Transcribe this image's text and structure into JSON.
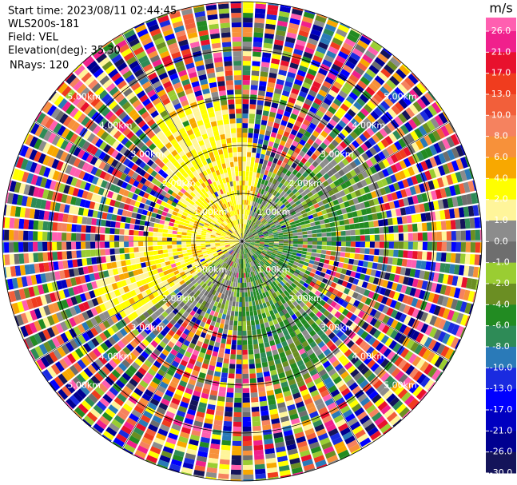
{
  "chart_data": {
    "type": "ppi",
    "header": [
      "Start time: 2023/08/11 02:44:45",
      "WLS200s-181",
      "Field: VEL",
      "Elevation(deg): 35.30",
      "NRays: 120"
    ],
    "range_labels": [
      "1.00km",
      "2.00km",
      "3.00km",
      "4.00km",
      "5.00km"
    ],
    "colorbar": {
      "label": "m/s",
      "ticks": [
        {
          "value": 26,
          "label": "26.0"
        },
        {
          "value": 21,
          "label": "21.0"
        },
        {
          "value": 17,
          "label": "17.0"
        },
        {
          "value": 13,
          "label": "13.0"
        },
        {
          "value": 10,
          "label": "10.0"
        },
        {
          "value": 8,
          "label": "8.0"
        },
        {
          "value": 6,
          "label": "6.0"
        },
        {
          "value": 4,
          "label": "4.0"
        },
        {
          "value": 2,
          "label": "2.0"
        },
        {
          "value": 1,
          "label": "1.0"
        },
        {
          "value": 0,
          "label": "0.0"
        },
        {
          "value": -1,
          "label": "-1.0"
        },
        {
          "value": -2,
          "label": "-2.0"
        },
        {
          "value": -4,
          "label": "-4.0"
        },
        {
          "value": -6,
          "label": "-6.0"
        },
        {
          "value": -8,
          "label": "-8.0"
        },
        {
          "value": -10,
          "label": "-10.0"
        },
        {
          "value": -13,
          "label": "-13.0"
        },
        {
          "value": -17,
          "label": "-17.0"
        },
        {
          "value": -21,
          "label": "-21.0"
        },
        {
          "value": -26,
          "label": "-26.0"
        },
        {
          "value": -30,
          "label": "-30.0"
        }
      ],
      "colors": [
        "#ff5fb0",
        "#f0208c",
        "#e8112d",
        "#f03c1e",
        "#f25f3a",
        "#f5825f",
        "#f7913a",
        "#f8a800",
        "#ffff00",
        "#fff59a",
        "#8c8c8c",
        "#6e6e6e",
        "#9acd32",
        "#6b8e23",
        "#228b22",
        "#2e8b57",
        "#2a7ab8",
        "#1a2be0",
        "#0000ff",
        "#0000c0",
        "#000090",
        "#14145a"
      ]
    }
  }
}
